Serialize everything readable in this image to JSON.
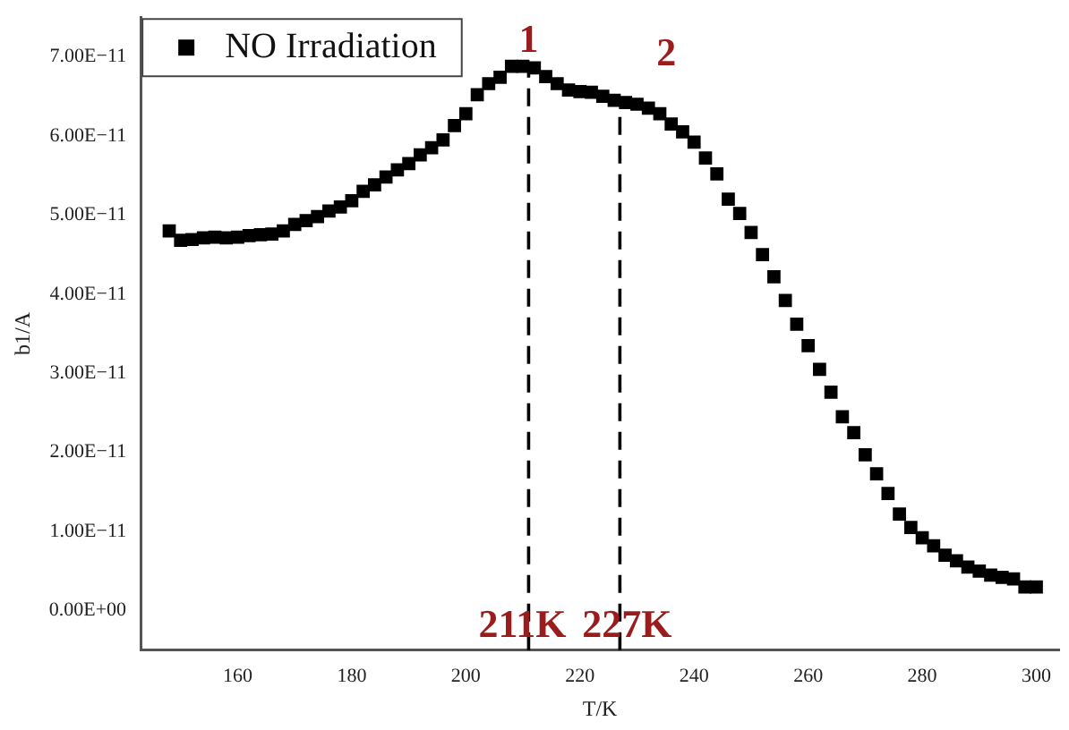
{
  "chart_data": {
    "type": "scatter",
    "xlabel": "T/K",
    "ylabel": "b1/A",
    "x": [
      148,
      150,
      152,
      154,
      156,
      158,
      160,
      162,
      164,
      166,
      168,
      170,
      172,
      174,
      176,
      178,
      180,
      182,
      184,
      186,
      188,
      190,
      192,
      194,
      196,
      198,
      200,
      202,
      204,
      206,
      208,
      210,
      212,
      214,
      216,
      218,
      220,
      222,
      224,
      226,
      228,
      230,
      232,
      234,
      236,
      238,
      240,
      242,
      244,
      246,
      248,
      250,
      252,
      254,
      256,
      258,
      260,
      262,
      264,
      266,
      268,
      270,
      272,
      274,
      276,
      278,
      280,
      282,
      284,
      286,
      288,
      290,
      292,
      294,
      296,
      298,
      300
    ],
    "series": [
      {
        "name": "NO Irradiation",
        "color": "#000000",
        "values": [
          4.8e-11,
          4.68e-11,
          4.69e-11,
          4.71e-11,
          4.72e-11,
          4.71e-11,
          4.72e-11,
          4.74e-11,
          4.75e-11,
          4.76e-11,
          4.8e-11,
          4.88e-11,
          4.93e-11,
          4.98e-11,
          5.05e-11,
          5.1e-11,
          5.18e-11,
          5.3e-11,
          5.38e-11,
          5.48e-11,
          5.57e-11,
          5.65e-11,
          5.76e-11,
          5.85e-11,
          5.95e-11,
          6.13e-11,
          6.28e-11,
          6.52e-11,
          6.66e-11,
          6.74e-11,
          6.88e-11,
          6.88e-11,
          6.86e-11,
          6.75e-11,
          6.66e-11,
          6.58e-11,
          6.56e-11,
          6.55e-11,
          6.5e-11,
          6.45e-11,
          6.42e-11,
          6.4e-11,
          6.35e-11,
          6.28e-11,
          6.15e-11,
          6.05e-11,
          5.92e-11,
          5.72e-11,
          5.52e-11,
          5.2e-11,
          5.02e-11,
          4.78e-11,
          4.5e-11,
          4.22e-11,
          3.92e-11,
          3.62e-11,
          3.35e-11,
          3.05e-11,
          2.76e-11,
          2.45e-11,
          2.25e-11,
          1.97e-11,
          1.73e-11,
          1.48e-11,
          1.22e-11,
          1.05e-11,
          9.2e-12,
          8.2e-12,
          7e-12,
          6.3e-12,
          5.5e-12,
          5e-12,
          4.5e-12,
          4.2e-12,
          4e-12,
          3e-12,
          3e-12
        ]
      }
    ],
    "xlim": [
      143,
      304
    ],
    "ylim": [
      -5e-12,
      7.5e-11
    ],
    "xticks": [
      160,
      180,
      200,
      220,
      240,
      260,
      280,
      300
    ],
    "yticks": [
      {
        "value": 0,
        "label": "0.00E+00"
      },
      {
        "value": 1e-11,
        "label": "1.00E−11"
      },
      {
        "value": 2e-11,
        "label": "2.00E−11"
      },
      {
        "value": 3e-11,
        "label": "3.00E−11"
      },
      {
        "value": 4e-11,
        "label": "4.00E−11"
      },
      {
        "value": 5e-11,
        "label": "5.00E−11"
      },
      {
        "value": 6e-11,
        "label": "6.00E−11"
      },
      {
        "value": 7e-11,
        "label": "7.00E−11"
      }
    ],
    "ref_lines": [
      {
        "axis": "x",
        "value": 211,
        "label": "211K",
        "color": "#000000",
        "line_style": "dashed"
      },
      {
        "axis": "x",
        "value": 227,
        "label": "227K",
        "color": "#000000",
        "line_style": "dashed"
      }
    ],
    "annotations": [
      "1",
      "2"
    ],
    "legend": "top left",
    "marker": "square",
    "grid": false
  }
}
